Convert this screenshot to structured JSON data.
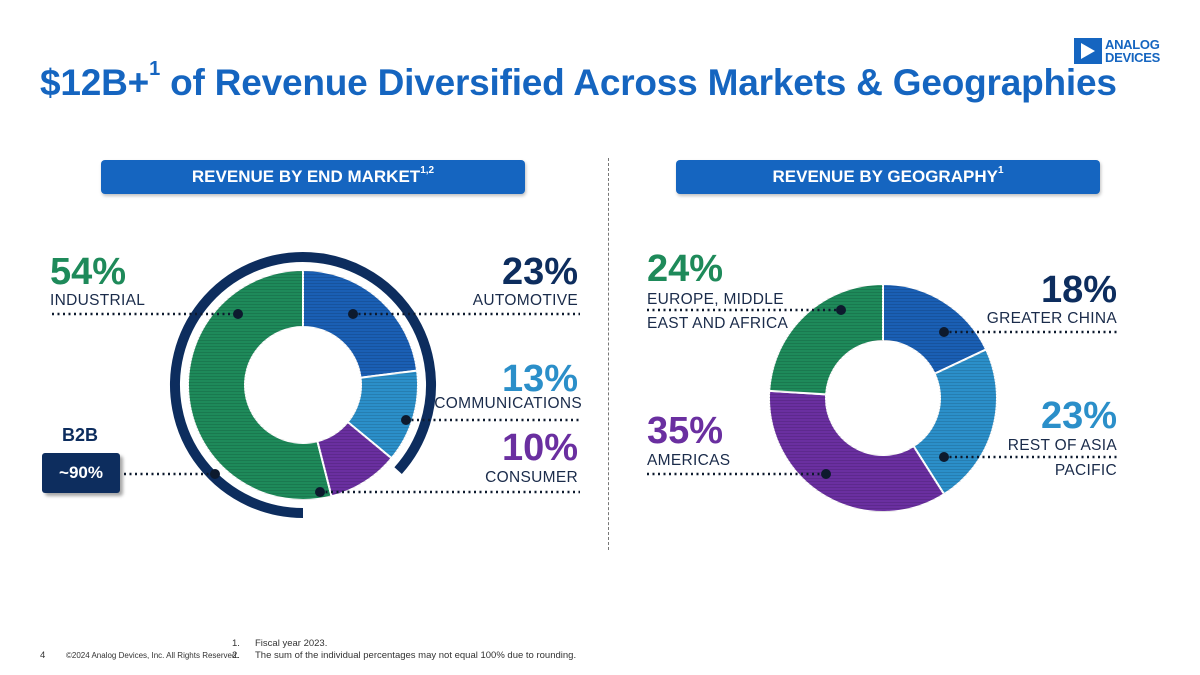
{
  "slide": {
    "title": "$12B+",
    "title_sup": "1",
    "title_rest": " of Revenue Diversified Across Markets & Geographies",
    "logo": {
      "line1": "ANALOG",
      "line2": "DEVICES"
    },
    "page_number": "4",
    "copyright": "©2024 Analog Devices, Inc. All Rights Reserved.",
    "footnotes": [
      {
        "num": "1.",
        "text": "Fiscal year 2023."
      },
      {
        "num": "2.",
        "text": "The sum of the individual percentages may not equal 100% due to rounding."
      }
    ]
  },
  "panels": {
    "left": {
      "header": "REVENUE BY END MARKET",
      "header_sup": "1,2"
    },
    "right": {
      "header": "REVENUE BY GEOGRAPHY",
      "header_sup": "1"
    }
  },
  "b2b": {
    "label": "B2B",
    "value": "~90%"
  },
  "colors": {
    "brand_blue": "#1565c0",
    "navy": "#0d2d5e",
    "green": "#1e8a5a",
    "blue": "#1a5fb4",
    "light_blue": "#2b8fc9",
    "purple": "#6a2fa0"
  },
  "chart_data": [
    {
      "type": "pie",
      "title": "REVENUE BY END MARKET",
      "categories": [
        "INDUSTRIAL",
        "AUTOMOTIVE",
        "COMMUNICATIONS",
        "CONSUMER"
      ],
      "values": [
        54,
        23,
        13,
        10
      ],
      "labels": [
        "54%",
        "23%",
        "13%",
        "10%"
      ],
      "colors": [
        "#1e8a5a",
        "#1a5fb4",
        "#2b8fc9",
        "#6a2fa0"
      ],
      "b2b_share": 90
    },
    {
      "type": "pie",
      "title": "REVENUE BY GEOGRAPHY",
      "categories": [
        "GREATER CHINA",
        "REST OF ASIA PACIFIC",
        "AMERICAS",
        "EUROPE, MIDDLE EAST AND AFRICA"
      ],
      "values": [
        18,
        23,
        35,
        24
      ],
      "labels": [
        "18%",
        "23%",
        "35%",
        "24%"
      ],
      "colors": [
        "#1a5fb4",
        "#2b8fc9",
        "#6a2fa0",
        "#1e8a5a"
      ]
    }
  ],
  "labels": {
    "industrial": {
      "pct": "54%",
      "name": "INDUSTRIAL"
    },
    "automotive": {
      "pct": "23%",
      "name": "AUTOMOTIVE"
    },
    "communications": {
      "pct": "13%",
      "name": "COMMUNICATIONS"
    },
    "consumer": {
      "pct": "10%",
      "name": "CONSUMER"
    },
    "emea": {
      "pct": "24%",
      "name1": "EUROPE, MIDDLE",
      "name2": "EAST AND AFRICA"
    },
    "china": {
      "pct": "18%",
      "name": "GREATER CHINA"
    },
    "apac": {
      "pct": "23%",
      "name1": "REST OF ASIA",
      "name2": "PACIFIC"
    },
    "americas": {
      "pct": "35%",
      "name": "AMERICAS"
    }
  }
}
